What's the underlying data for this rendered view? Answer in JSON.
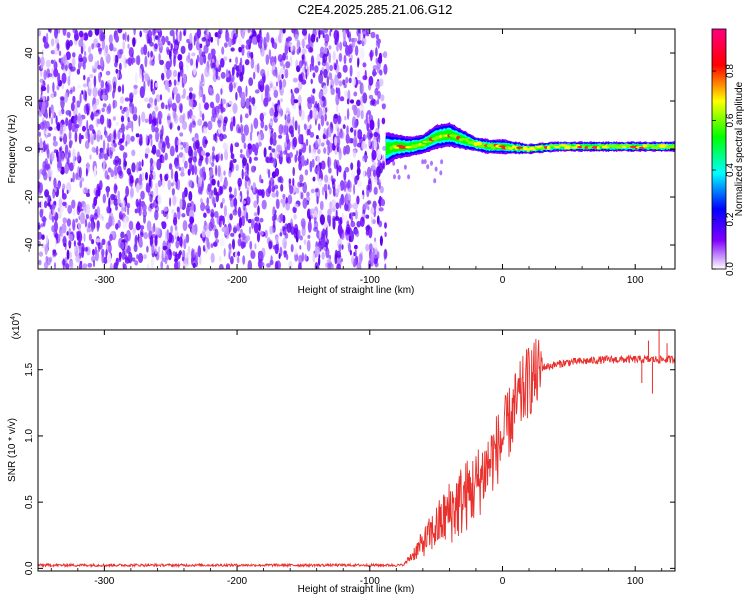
{
  "title": "C2E4.2025.285.21.06.G12",
  "chart_data": [
    {
      "type": "heatmap",
      "xlabel": "Height of straight line (km)",
      "ylabel": "Frequency (Hz)",
      "xlim": [
        -350,
        130
      ],
      "ylim": [
        -50,
        50
      ],
      "x_ticks": [
        -300,
        -200,
        -100,
        0,
        100
      ],
      "y_ticks": [
        -40,
        -20,
        0,
        20,
        40
      ],
      "colorbar": {
        "label": "Normalized spectral amplitude",
        "range": [
          0.0,
          0.97
        ],
        "ticks": [
          "0.0",
          "0.2",
          "0.4",
          "0.6",
          "0.8"
        ],
        "colors": [
          "#ffffff",
          "#7f00ff",
          "#0000ff",
          "#00ffff",
          "#00ff00",
          "#ffff00",
          "#ff0000",
          "#ff0080"
        ]
      },
      "noise_region": {
        "x_range": [
          -350,
          -88
        ],
        "freq_range": [
          -50,
          50
        ]
      },
      "signal_track": {
        "x": [
          -88,
          -80,
          -70,
          -60,
          -50,
          -40,
          -30,
          -20,
          -10,
          0,
          20,
          40,
          60,
          80,
          100,
          120,
          130
        ],
        "freq": [
          0,
          1,
          1,
          2,
          5,
          6,
          4,
          2,
          1,
          1,
          0,
          1,
          1,
          1,
          1,
          1,
          1
        ],
        "spread": [
          7,
          5,
          4,
          4,
          5,
          5,
          4,
          3,
          3,
          3,
          2,
          2,
          2,
          2,
          2,
          2,
          2
        ],
        "peak_amplitude": 0.85
      }
    },
    {
      "type": "line",
      "xlabel": "Height of straight line (km)",
      "ylabel": "SNR (10 * v/v)",
      "y_multiplier": "(x10",
      "y_multiplier_exp": "4",
      "y_multiplier_close": ")",
      "xlim": [
        -350,
        130
      ],
      "ylim": [
        -0.02,
        1.8
      ],
      "x_ticks": [
        -300,
        -200,
        -100,
        0,
        100
      ],
      "y_ticks": [
        "0.0",
        "0.5",
        "1.0",
        "1.5"
      ],
      "series_color": "#e8302c",
      "baseline": {
        "x_range": [
          -350,
          -75
        ],
        "value": 0.02
      },
      "ramp": {
        "x": [
          -75,
          -60,
          -40,
          -20,
          0,
          10,
          20,
          30,
          50,
          80,
          130
        ],
        "y": [
          0.02,
          0.2,
          0.45,
          0.65,
          1.0,
          1.25,
          1.45,
          1.52,
          1.56,
          1.58,
          1.58
        ]
      },
      "noisy_spikes": {
        "x": [
          105,
          110,
          113,
          118,
          124
        ],
        "y": [
          1.4,
          1.72,
          1.32,
          1.84,
          1.7
        ]
      }
    }
  ]
}
